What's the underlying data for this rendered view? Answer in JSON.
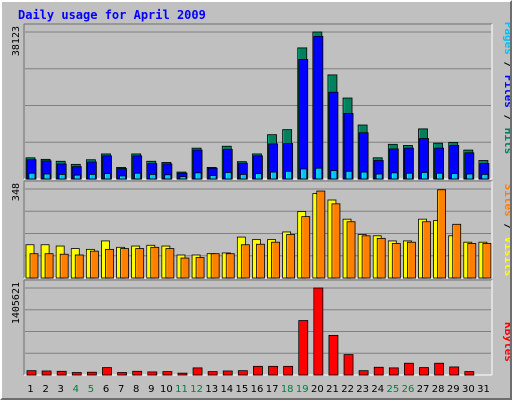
{
  "chart_data": {
    "type": "bar",
    "title": "Daily usage for April 2009",
    "categories": [
      "1",
      "2",
      "3",
      "4",
      "5",
      "6",
      "7",
      "8",
      "9",
      "10",
      "11",
      "12",
      "13",
      "14",
      "15",
      "16",
      "17",
      "18",
      "19",
      "20",
      "21",
      "22",
      "23",
      "24",
      "25",
      "26",
      "27",
      "28",
      "29",
      "30",
      "31"
    ],
    "weekend_days": [
      "4",
      "5",
      "11",
      "12",
      "18",
      "19",
      "25",
      "26"
    ],
    "grid": true,
    "legend": "right side, vertical",
    "panels": [
      {
        "name": "top",
        "max_label": "38123",
        "ylim": [
          0,
          38123
        ],
        "series": [
          {
            "name": "Hits",
            "color": "#00805c",
            "values": [
              5500,
              5100,
              4600,
              3800,
              5000,
              6500,
              3000,
              6500,
              4600,
              4300,
              1800,
              8000,
              3000,
              8500,
              4500,
              6500,
              11500,
              12800,
              34000,
              38123,
              27000,
              21000,
              14000,
              5500,
              9000,
              8700,
              13000,
              9300,
              9500,
              7500,
              4800
            ]
          },
          {
            "name": "Files",
            "color": "#0000ff",
            "values": [
              5000,
              4700,
              3900,
              3200,
              4400,
              6000,
              2700,
              6000,
              4000,
              3900,
              1500,
              7500,
              2800,
              7700,
              4100,
              6000,
              9100,
              9200,
              31000,
              37000,
              22500,
              17000,
              12000,
              4800,
              7800,
              8000,
              10500,
              8000,
              8700,
              6800,
              4000
            ]
          },
          {
            "name": "Pages",
            "color": "#00c0ff",
            "values": [
              1500,
              1300,
              1200,
              1000,
              1200,
              1400,
              800,
              1500,
              1200,
              1100,
              600,
              1600,
              900,
              1700,
              1200,
              1400,
              1800,
              2000,
              2600,
              2800,
              2200,
              2000,
              1800,
              1300,
              1600,
              1500,
              1700,
              1500,
              1400,
              1300,
              1200
            ]
          }
        ]
      },
      {
        "name": "middle",
        "max_label": "348",
        "ylim": [
          0,
          348
        ],
        "series": [
          {
            "name": "Visits",
            "color": "#ffff00",
            "values": [
              130,
              130,
              125,
              115,
              112,
              145,
              120,
              125,
              128,
              125,
              90,
              90,
              95,
              98,
              160,
              150,
              150,
              180,
              260,
              330,
              305,
              230,
              170,
              165,
              145,
              145,
              230,
              225,
              165,
              140,
              140
            ]
          },
          {
            "name": "Sites",
            "color": "#ff8000",
            "values": [
              95,
              95,
              93,
              90,
              105,
              112,
              115,
              115,
              120,
              115,
              78,
              80,
              95,
              95,
              130,
              132,
              140,
              170,
              240,
              340,
              290,
              220,
              165,
              155,
              135,
              140,
              220,
              345,
              210,
              135,
              135
            ]
          }
        ]
      },
      {
        "name": "bottom",
        "max_label": "1405621",
        "ylim": [
          0,
          1405621
        ],
        "series": [
          {
            "name": "KBytes",
            "color": "#ff0000",
            "values": [
              70000,
              65000,
              60000,
              40000,
              45000,
              120000,
              40000,
              60000,
              50000,
              55000,
              30000,
              115000,
              55000,
              65000,
              70000,
              140000,
              140000,
              140000,
              880000,
              1405621,
              640000,
              330000,
              70000,
              125000,
              115000,
              190000,
              120000,
              190000,
              130000,
              55000,
              0
            ]
          }
        ]
      }
    ],
    "legend_labels": {
      "top": [
        {
          "text": "Pages",
          "color": "#00c0ff"
        },
        {
          "text": " / ",
          "color": "#000000"
        },
        {
          "text": "Files",
          "color": "#0000ff"
        },
        {
          "text": " / ",
          "color": "#000000"
        },
        {
          "text": "Hits",
          "color": "#00805c"
        }
      ],
      "middle": [
        {
          "text": "Sites",
          "color": "#ff8000"
        },
        {
          "text": " / ",
          "color": "#000000"
        },
        {
          "text": "Visits",
          "color": "#ffff00"
        }
      ],
      "bottom": [
        {
          "text": "KBytes",
          "color": "#ff0000"
        }
      ]
    },
    "colors": {
      "title": "#0000ff",
      "weekday_label": "#000000",
      "weekend_label": "#008040",
      "panel_bg": "#c0c0c0",
      "grid": "#808080"
    }
  }
}
